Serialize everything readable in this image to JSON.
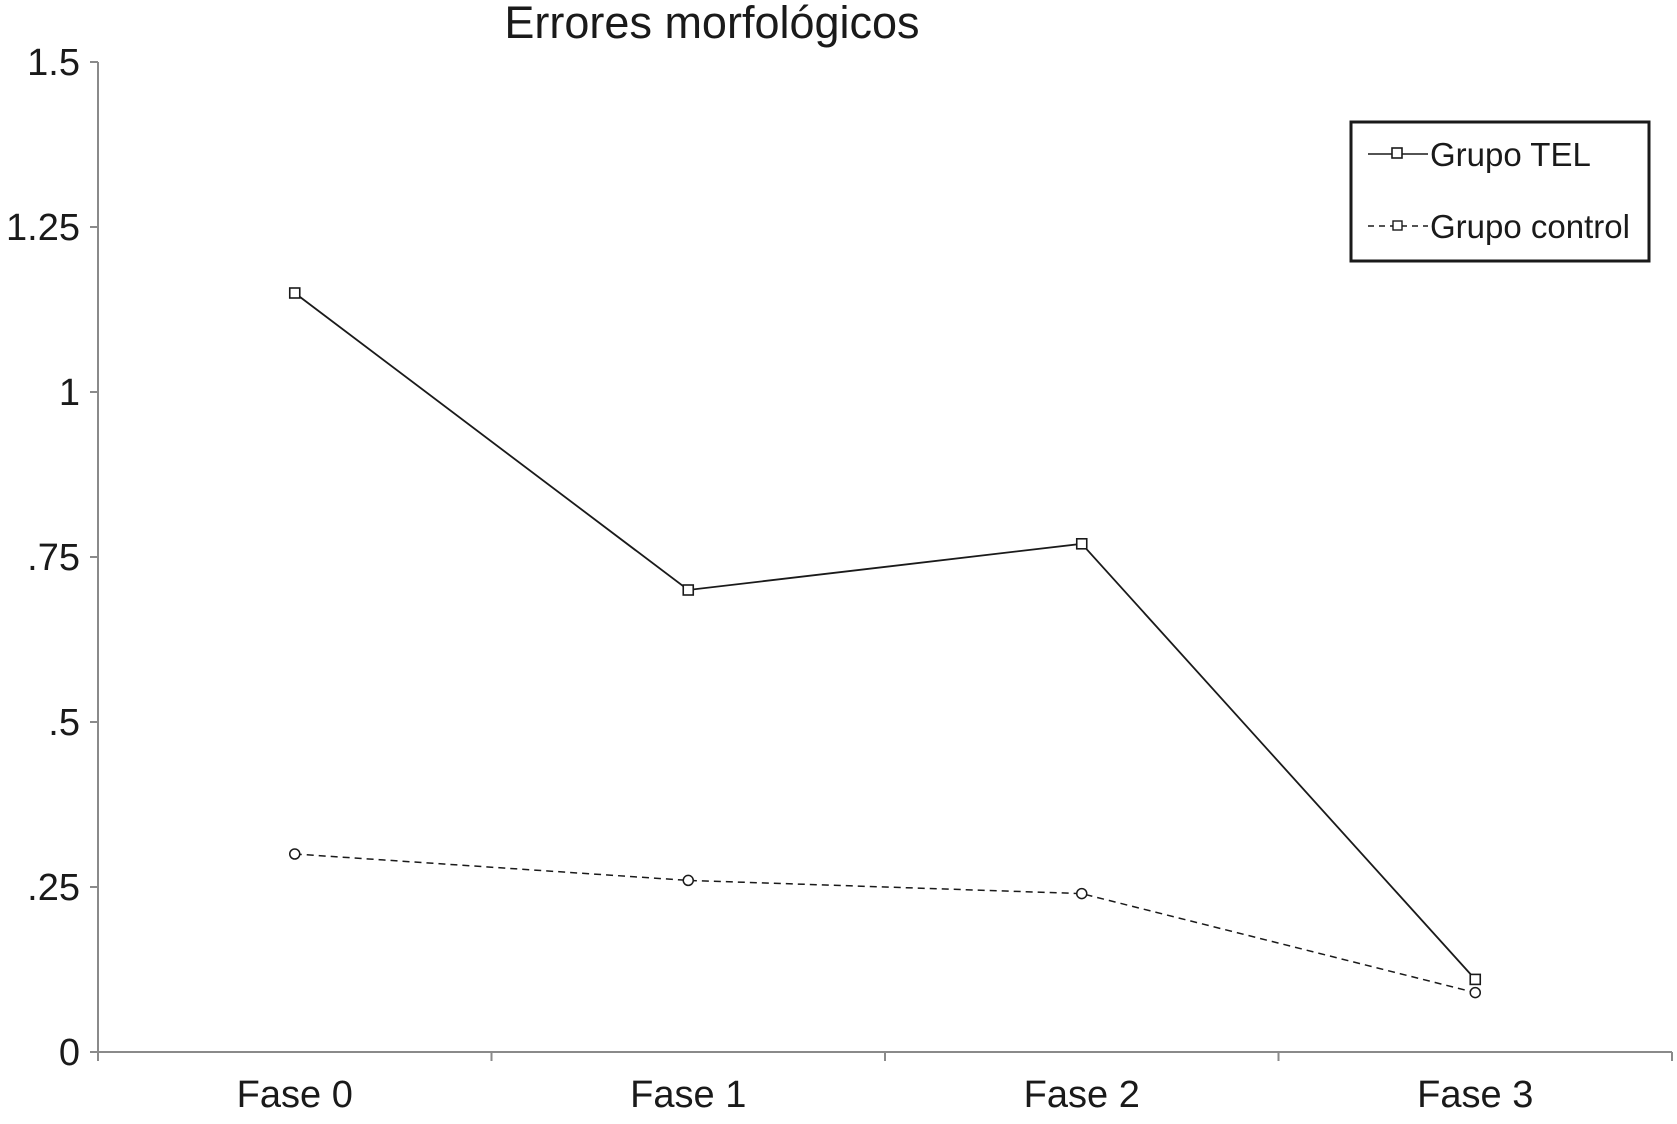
{
  "chart_data": {
    "type": "line",
    "title": "Errores morfológicos",
    "xlabel": "",
    "ylabel": "",
    "categories": [
      "Fase 0",
      "Fase 1",
      "Fase 2",
      "Fase 3"
    ],
    "ylim": [
      0,
      1.5
    ],
    "yticks": [
      0,
      0.25,
      0.5,
      0.75,
      1,
      1.25,
      1.5
    ],
    "ytick_labels": [
      "0",
      ".25",
      ".5",
      ".75",
      "1",
      "1.25",
      "1.5"
    ],
    "grid": false,
    "legend_position": "top-right",
    "series": [
      {
        "name": "Grupo TEL",
        "values": [
          1.15,
          0.7,
          0.77,
          0.11
        ],
        "line_style": "solid",
        "marker": "square",
        "color": "#1a1a1a"
      },
      {
        "name": "Grupo control",
        "values": [
          0.3,
          0.26,
          0.24,
          0.09
        ],
        "line_style": "dashed",
        "marker": "circle",
        "color": "#1a1a1a"
      }
    ]
  }
}
